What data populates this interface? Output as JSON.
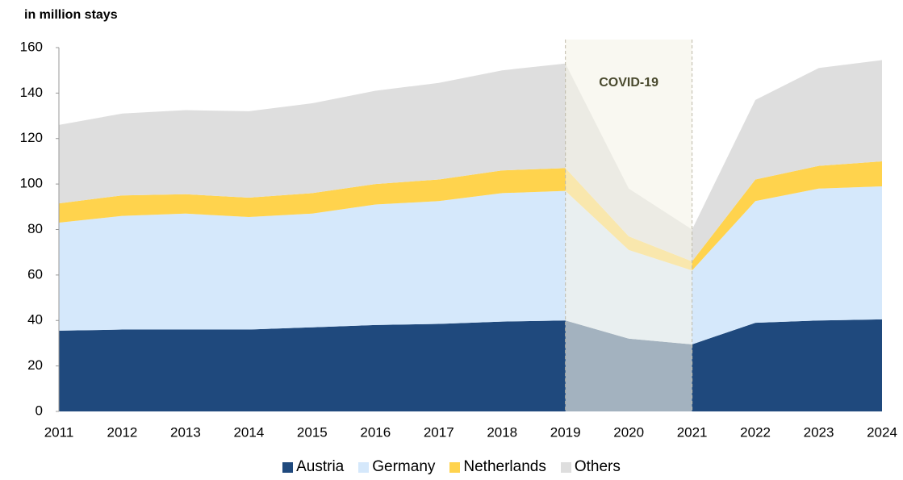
{
  "chart_data": {
    "type": "stacked_area",
    "y_label": "in million stays",
    "categories": [
      "2011",
      "2012",
      "2013",
      "2014",
      "2015",
      "2016",
      "2017",
      "2018",
      "2019",
      "2020",
      "2021",
      "2022",
      "2023",
      "2024"
    ],
    "series": [
      {
        "name": "Austria",
        "color": "#1f497d",
        "values": [
          35.5,
          36,
          36,
          36,
          37,
          38,
          38.5,
          39.5,
          40,
          32,
          29.5,
          39,
          40,
          40.5
        ]
      },
      {
        "name": "Germany",
        "color": "#d5e8fb",
        "values": [
          47.5,
          50,
          51,
          49.5,
          50,
          53,
          54,
          56.5,
          57,
          39,
          32.5,
          53.5,
          58,
          58.5
        ]
      },
      {
        "name": "Netherlands",
        "color": "#ffd34d",
        "values": [
          8.5,
          9,
          8.5,
          8.5,
          9,
          9,
          9.5,
          10,
          10,
          6,
          4,
          9.5,
          10,
          11
        ]
      },
      {
        "name": "Others",
        "color": "#dedede",
        "values": [
          34.5,
          36,
          37,
          38,
          39.5,
          41,
          42.5,
          44,
          46,
          21,
          14,
          35,
          43,
          44.5
        ]
      }
    ],
    "highlight": {
      "from": "2019",
      "to": "2021",
      "label": "COVID-19"
    },
    "ylim": [
      0,
      160
    ],
    "yticks": [
      0,
      20,
      40,
      60,
      80,
      100,
      120,
      140,
      160
    ]
  }
}
